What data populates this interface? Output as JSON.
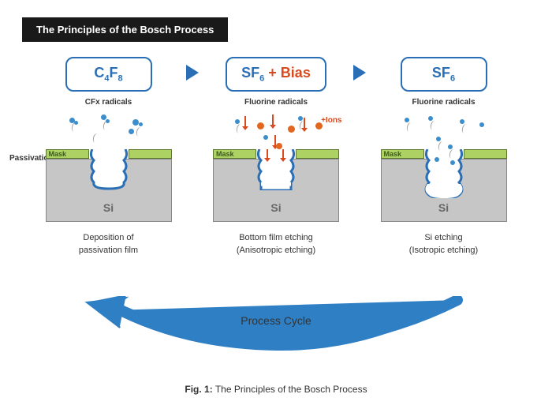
{
  "title": "The Principles of the Bosch Process",
  "colors": {
    "blue": "#2a6fb5",
    "arrow_blue": "#2f7fc4",
    "orange": "#e2661f",
    "green": "#aed164",
    "gray": "#c6c6c6",
    "particle_blue": "#3b8dcb"
  },
  "stages": [
    {
      "gas_html": "C<span class='sub'>4</span>F<span class='sub'>8</span>",
      "radicals_label": "CFx radicals",
      "mask_label": "Mask",
      "si_label": "Si",
      "caption": "Deposition of\npassivation film",
      "trench_type": "passivation",
      "particle_color": "blue",
      "show_ions": false
    },
    {
      "gas_html": "SF<span class='sub'>6</span> <span style='color:#d84a1f'>+ Bias</span>",
      "radicals_label": "Fluorine radicals",
      "ions_label": "+Ions",
      "mask_label": "Mask",
      "si_label": "Si",
      "caption": "Bottom film etching\n(Anisotropic etching)",
      "trench_type": "bottom_etch",
      "particle_color": "mixed",
      "show_ions": true
    },
    {
      "gas_html": "SF<span class='sub'>6</span>",
      "radicals_label": "Fluorine radicals",
      "mask_label": "Mask",
      "si_label": "Si",
      "caption": "Si etching\n(Isotropic etching)",
      "trench_type": "isotropic",
      "particle_color": "blue",
      "show_ions": false
    }
  ],
  "passivation_label": "Passivation film",
  "cycle_label": "Process Cycle",
  "figure_caption_bold": "Fig. 1:",
  "figure_caption_text": " The Principles of the Bosch Process"
}
